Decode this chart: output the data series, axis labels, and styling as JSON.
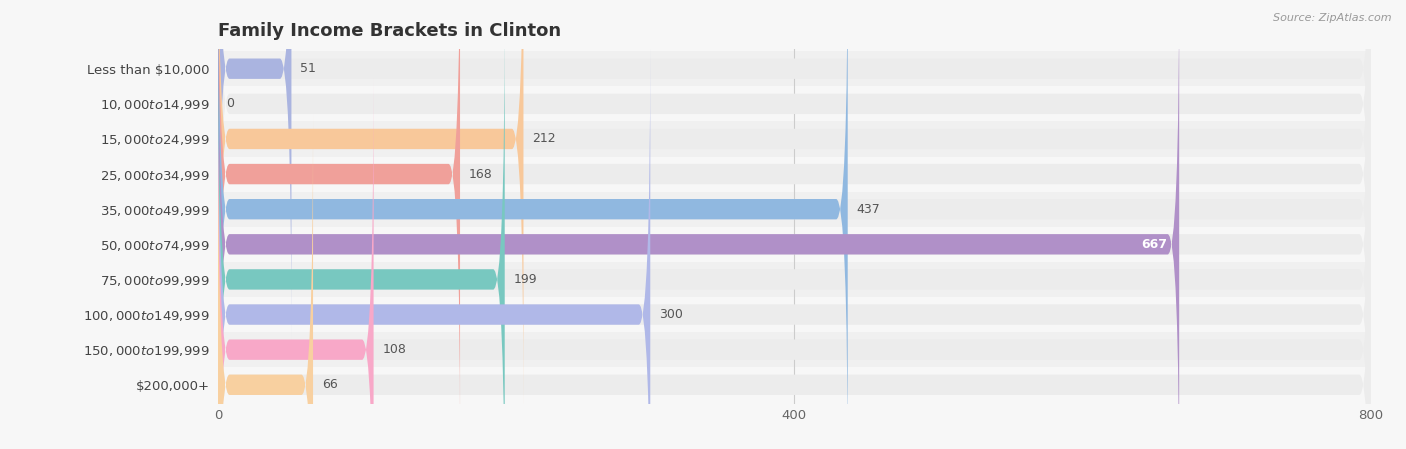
{
  "title": "Family Income Brackets in Clinton",
  "source": "Source: ZipAtlas.com",
  "categories": [
    "Less than $10,000",
    "$10,000 to $14,999",
    "$15,000 to $24,999",
    "$25,000 to $34,999",
    "$35,000 to $49,999",
    "$50,000 to $74,999",
    "$75,000 to $99,999",
    "$100,000 to $149,999",
    "$150,000 to $199,999",
    "$200,000+"
  ],
  "values": [
    51,
    0,
    212,
    168,
    437,
    667,
    199,
    300,
    108,
    66
  ],
  "bar_colors": [
    "#aab4e0",
    "#f4a8bf",
    "#f8c89a",
    "#f0a09a",
    "#90b8e0",
    "#b090c8",
    "#78c8c0",
    "#b0b8e8",
    "#f8a8c8",
    "#f8d0a0"
  ],
  "background_color": "#f7f7f7",
  "bar_background_color": "#ececec",
  "xlim": [
    0,
    800
  ],
  "xticks": [
    0,
    400,
    800
  ],
  "title_fontsize": 13,
  "label_fontsize": 9.5,
  "value_fontsize": 9,
  "bar_height": 0.58
}
